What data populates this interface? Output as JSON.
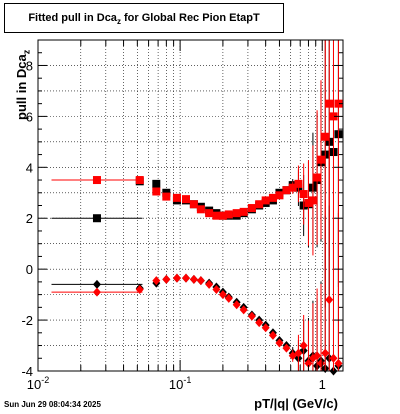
{
  "title": {
    "text": "Fitted pull in Dca",
    "sub": "z",
    "suffix": " for Global Rec Pion EtapT"
  },
  "footer": "Sun Jun 29 08:04:34 2025",
  "chart_data": {
    "type": "scatter",
    "title": "Fitted pull in Dca z for Global Rec Pion EtapT",
    "xlabel": "pT/|q| (GeV/c)",
    "ylabel": "pull in Dca z",
    "xscale": "log",
    "xlim": [
      0.01,
      1.4
    ],
    "ylim": [
      -4,
      9
    ],
    "grid": true,
    "x_tick_labels": [
      "10^-2",
      "10^-1",
      "1"
    ],
    "y_tick_labels": [
      "-4",
      "-2",
      "0",
      "2",
      "4",
      "6",
      "8"
    ],
    "colors": {
      "black": "#000000",
      "red": "#ff0000"
    },
    "series": [
      {
        "marker": "square",
        "color": "#000000",
        "x": [
          0.026,
          0.052,
          0.068,
          0.08,
          0.095,
          0.11,
          0.125,
          0.14,
          0.16,
          0.18,
          0.2,
          0.22,
          0.25,
          0.28,
          0.32,
          0.36,
          0.4,
          0.45,
          0.5,
          0.56,
          0.62,
          0.68,
          0.74,
          0.8,
          0.86,
          0.92,
          0.98,
          1.05,
          1.12,
          1.2,
          1.3
        ],
        "y": [
          2.0,
          3.45,
          3.35,
          3.0,
          2.7,
          2.7,
          2.55,
          2.45,
          2.3,
          2.2,
          2.1,
          2.1,
          2.1,
          2.2,
          2.35,
          2.5,
          2.6,
          2.7,
          3.0,
          3.1,
          3.3,
          3.2,
          2.5,
          2.55,
          3.2,
          3.5,
          4.2,
          4.5,
          5.0,
          4.6,
          5.3
        ]
      },
      {
        "marker": "square",
        "color": "#ff0000",
        "x": [
          0.026,
          0.052,
          0.068,
          0.08,
          0.095,
          0.11,
          0.125,
          0.14,
          0.16,
          0.18,
          0.2,
          0.22,
          0.25,
          0.28,
          0.32,
          0.36,
          0.4,
          0.45,
          0.5,
          0.56,
          0.62,
          0.68,
          0.74,
          0.8,
          0.86,
          0.92,
          0.98,
          1.05,
          1.12,
          1.2,
          1.3
        ],
        "y": [
          3.5,
          3.5,
          3.05,
          2.85,
          2.8,
          2.75,
          2.55,
          2.35,
          2.2,
          2.1,
          2.1,
          2.15,
          2.2,
          2.25,
          2.4,
          2.55,
          2.7,
          2.8,
          2.9,
          3.1,
          3.2,
          3.35,
          2.95,
          2.6,
          2.7,
          3.6,
          4.3,
          5.2,
          6.5,
          6.0,
          6.5
        ]
      },
      {
        "marker": "diamond",
        "color": "#000000",
        "x": [
          0.026,
          0.052,
          0.068,
          0.08,
          0.095,
          0.11,
          0.125,
          0.14,
          0.16,
          0.18,
          0.2,
          0.22,
          0.25,
          0.28,
          0.32,
          0.36,
          0.4,
          0.45,
          0.5,
          0.56,
          0.62,
          0.68,
          0.74,
          0.8,
          0.86,
          0.92,
          0.98,
          1.05,
          1.12,
          1.2,
          1.3
        ],
        "y": [
          -0.6,
          -0.75,
          -0.55,
          -0.4,
          -0.35,
          -0.35,
          -0.4,
          -0.45,
          -0.55,
          -0.7,
          -0.9,
          -1.1,
          -1.3,
          -1.5,
          -1.8,
          -2.0,
          -2.2,
          -2.5,
          -2.8,
          -3.0,
          -3.3,
          -3.5,
          -3.2,
          -3.6,
          -3.4,
          -3.8,
          -3.6,
          -3.9,
          -3.5,
          -4.0,
          -3.8
        ]
      },
      {
        "marker": "diamond",
        "color": "#ff0000",
        "x": [
          0.026,
          0.052,
          0.068,
          0.08,
          0.095,
          0.11,
          0.125,
          0.14,
          0.16,
          0.18,
          0.2,
          0.22,
          0.25,
          0.28,
          0.32,
          0.36,
          0.4,
          0.45,
          0.5,
          0.56,
          0.62,
          0.68,
          0.74,
          0.8,
          0.86,
          0.92,
          0.98,
          1.05,
          1.12,
          1.2,
          1.3
        ],
        "y": [
          -0.9,
          -0.8,
          -0.45,
          -0.4,
          -0.35,
          -0.35,
          -0.4,
          -0.45,
          -0.6,
          -0.8,
          -1.0,
          -1.15,
          -1.4,
          -1.6,
          -1.85,
          -2.1,
          -2.3,
          -2.6,
          -2.9,
          -3.1,
          -3.4,
          -3.3,
          -3.0,
          -3.7,
          -3.5,
          -3.4,
          -3.7,
          -3.3,
          -1.2,
          -3.5,
          -3.7
        ]
      }
    ]
  }
}
